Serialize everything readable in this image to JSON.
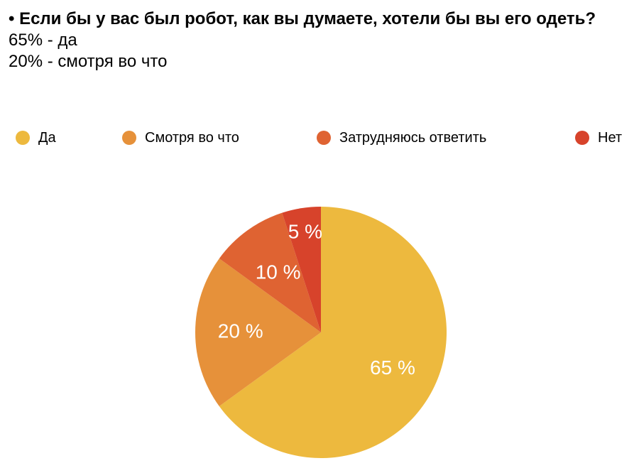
{
  "header": {
    "question": "• Если бы у вас был робот, как вы думаете, хотели бы вы его одеть?",
    "answers": [
      "65% - да",
      "20% - смотря во что"
    ]
  },
  "chart_data": {
    "type": "pie",
    "categories": [
      "Да",
      "Смотря во что",
      "Затрудняюсь ответить",
      "Нет"
    ],
    "values": [
      65,
      20,
      10,
      5
    ],
    "labels": [
      "65 %",
      "20 %",
      "10 %",
      "5 %"
    ],
    "colors": [
      "#EDB93E",
      "#E6913A",
      "#DF6332",
      "#D7432B"
    ],
    "legend_position": "top",
    "start": "top, clockwise"
  }
}
